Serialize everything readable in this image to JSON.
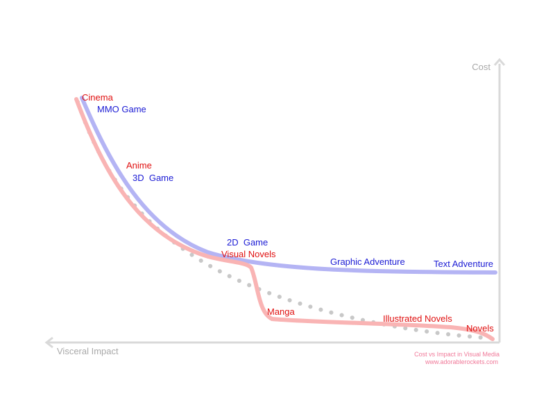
{
  "axes": {
    "x_label": "Visceral Impact",
    "y_label": "Cost"
  },
  "colors": {
    "axis": "#d9d9d9",
    "axis_text": "#a8a8a8",
    "blue_curve": "#b4b4f4",
    "red_curve": "#f9b4b4",
    "dotted_curve": "#c8c8c8",
    "blue_text": "#1a1ad4",
    "red_text": "#e01010",
    "credit_text": "#f07898"
  },
  "series": [
    {
      "key": "blue",
      "labels": [
        "MMO Game",
        "3D  Game",
        "2D  Game",
        "Graphic Adventure",
        "Text Adventure"
      ]
    },
    {
      "key": "red",
      "labels": [
        "Cinema",
        "Anime",
        "Visual Novels",
        "Manga",
        "Illustrated Novels",
        "Novels"
      ]
    },
    {
      "key": "dotted",
      "labels": []
    }
  ],
  "credit": {
    "line1": "Cost vs Impact in Visual Media",
    "line2": "www.adorablerockets.com"
  }
}
